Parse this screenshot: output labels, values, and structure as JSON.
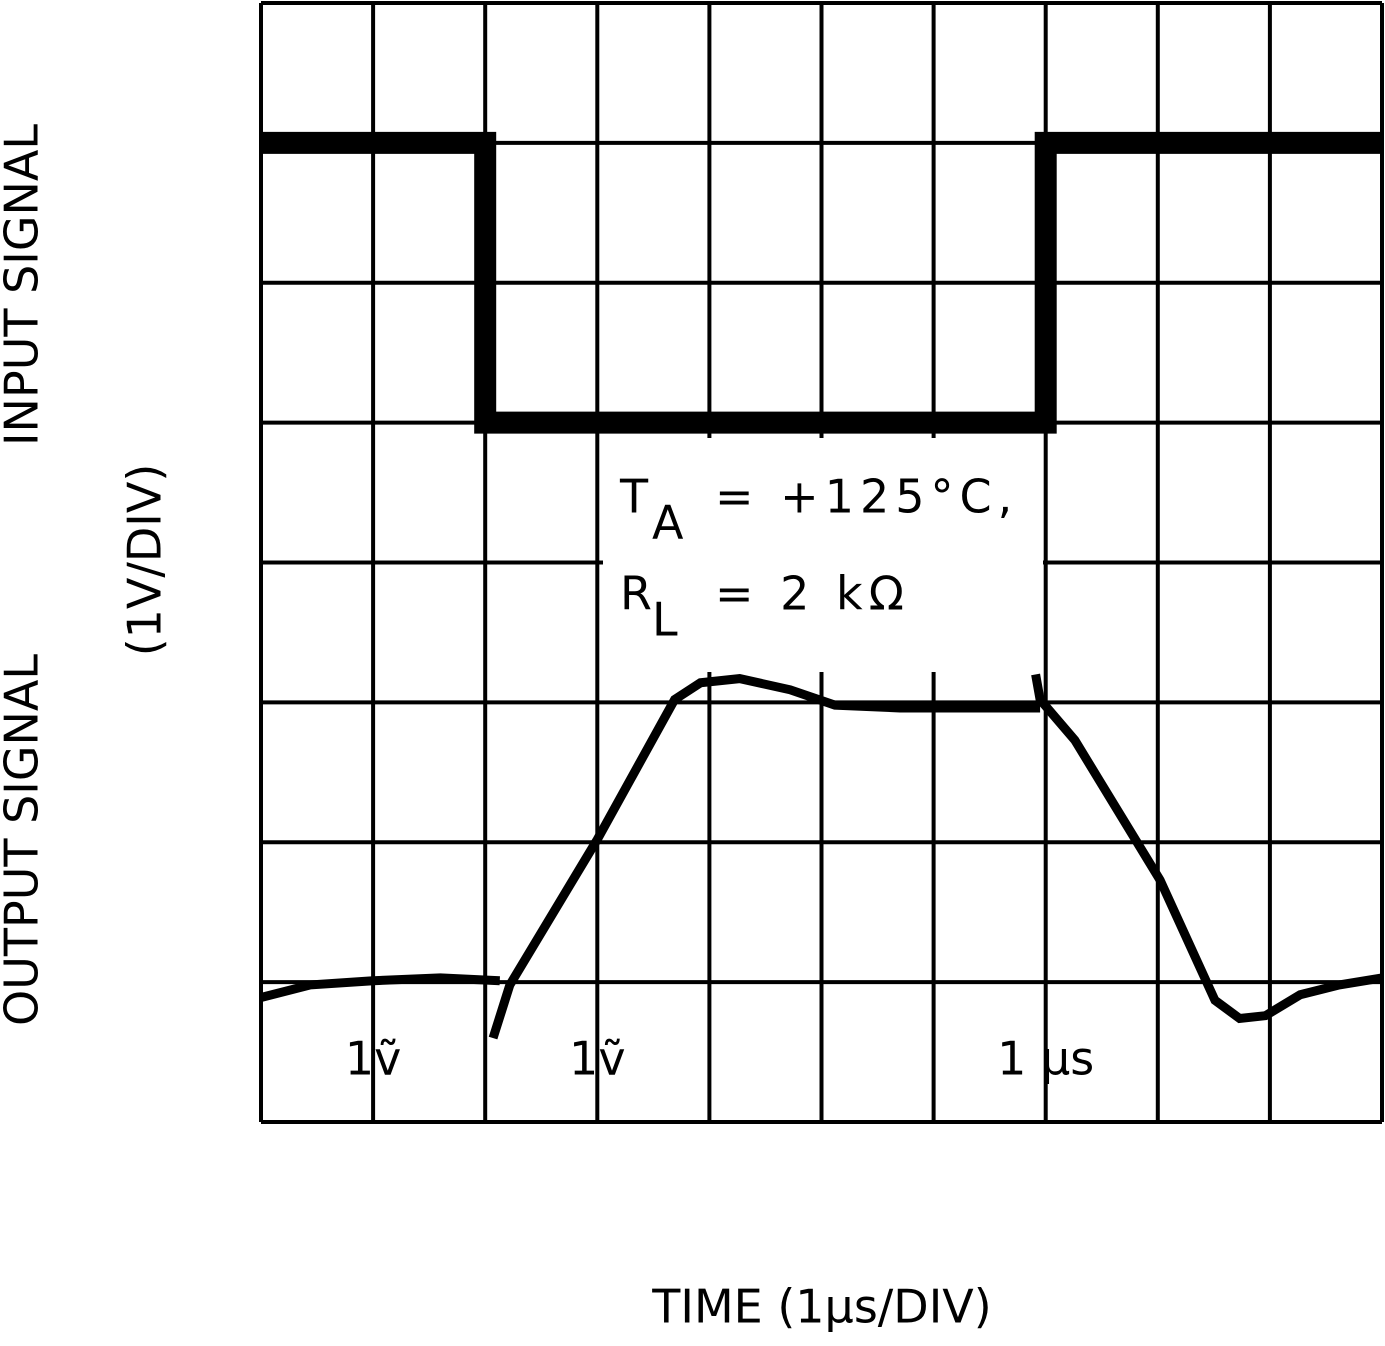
{
  "chart_data": {
    "type": "line",
    "x_label": "TIME (1µs/DIV)",
    "y_label": "(1V/DIV)",
    "conditions": [
      {
        "symbol": "T",
        "subscript": "A",
        "text": "= +125°C,"
      },
      {
        "symbol": "R",
        "subscript": "L",
        "text": "= 2 kΩ"
      }
    ],
    "scale_labels": [
      {
        "x": 1,
        "text": "1ṽ"
      },
      {
        "x": 3,
        "text": "1ṽ"
      },
      {
        "x": 7,
        "text": "1 µs"
      }
    ],
    "xlim": [
      0,
      10
    ],
    "ylim": [
      0,
      8
    ],
    "xticks": [
      0,
      1,
      2,
      3,
      4,
      5,
      6,
      7,
      8,
      9,
      10
    ],
    "yticks": [
      0,
      1,
      2,
      3,
      4,
      5,
      6,
      7,
      8
    ],
    "grid": true,
    "series": [
      {
        "name": "INPUT SIGNAL",
        "color": "#000000",
        "x": [
          0,
          2,
          2,
          7,
          7,
          10
        ],
        "values": [
          7,
          7,
          5,
          5,
          7,
          7
        ]
      },
      {
        "name": "OUTPUT SIGNAL",
        "color": "#000000",
        "x": [
          0,
          0.44,
          1.0,
          1.6,
          2.13,
          null,
          2.07,
          2.22,
          3.0,
          3.69,
          3.92,
          4.27,
          4.72,
          5.12,
          5.7,
          6.95,
          null,
          6.91,
          6.95,
          7.26,
          7.48,
          8.02,
          8.51,
          8.73,
          8.96,
          9.27,
          9.62,
          10
        ],
        "values": [
          0.89,
          0.98,
          1.01,
          1.03,
          1.01,
          null,
          0.6,
          0.98,
          2.02,
          3.02,
          3.14,
          3.17,
          3.09,
          2.98,
          2.96,
          2.96,
          null,
          3.2,
          3.02,
          2.73,
          2.44,
          1.73,
          0.87,
          0.74,
          0.76,
          0.91,
          0.98,
          1.03
        ]
      }
    ]
  }
}
